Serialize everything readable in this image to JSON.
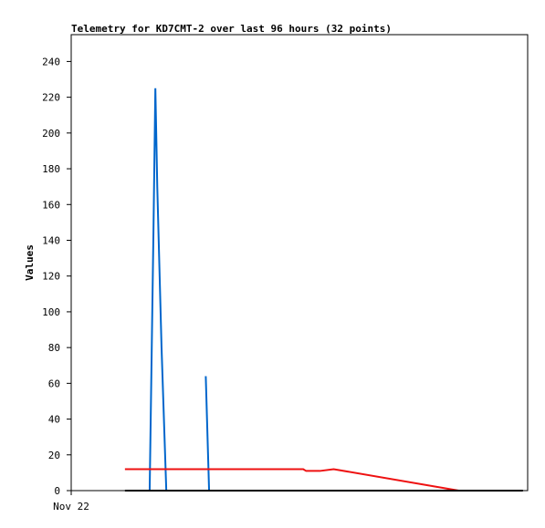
{
  "chart_data": {
    "type": "line",
    "title": "Telemetry for KD7CMT-2 over last 96 hours (32 points)",
    "y_label": "Values",
    "xlim": [
      0,
      96
    ],
    "xticks": [
      {
        "value": 0,
        "label": "Nov 22"
      }
    ],
    "ylim": [
      0,
      255
    ],
    "yticks": [
      0,
      20,
      40,
      60,
      80,
      100,
      120,
      140,
      160,
      180,
      200,
      220,
      240
    ],
    "series": [
      {
        "color": "#0066cc",
        "x": [
          16.5,
          17.3,
          17.7,
          18.1,
          19.0,
          20.0,
          27.3,
          28.3,
          29.0
        ],
        "values": [
          0,
          145,
          225,
          170,
          80,
          0,
          null,
          64,
          0
        ]
      },
      {
        "color": "#ee1111",
        "x": [
          11.3,
          48.8,
          49.4,
          52.3,
          55.2,
          81.5
        ],
        "values": [
          12,
          12,
          11,
          11,
          12,
          0
        ]
      },
      {
        "color": "#000000",
        "x": [
          11.3,
          95.0
        ],
        "values": [
          0,
          0
        ]
      }
    ]
  }
}
